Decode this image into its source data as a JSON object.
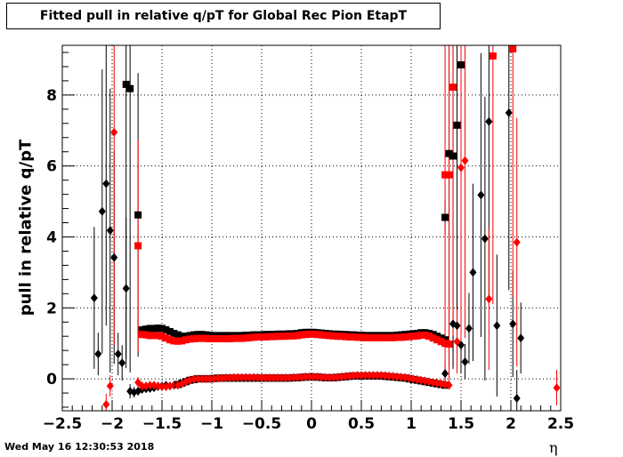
{
  "footer": {
    "date": "Wed May 16 12:30:53 2018"
  },
  "chart_data": {
    "type": "scatter",
    "title": "Fitted pull in relative q/pT for Global Rec Pion EtapT",
    "xlabel": "η",
    "ylabel": "pull in relative q/pT",
    "xlim": [
      -2.5,
      2.5
    ],
    "ylim": [
      -0.9,
      9.4
    ],
    "grid": true,
    "x_ticks": [
      -2.5,
      -2,
      -1.5,
      -1,
      -0.5,
      0,
      0.5,
      1,
      1.5,
      2,
      2.5
    ],
    "x_tick_labels": [
      "−2.5",
      "−2",
      "−1.5",
      "−1",
      "−0.5",
      "0",
      "0.5",
      "1",
      "1.5",
      "2",
      "2.5"
    ],
    "y_ticks": [
      0,
      2,
      4,
      6,
      8
    ],
    "y_tick_labels": [
      "0",
      "2",
      "4",
      "6",
      "8"
    ],
    "colors": {
      "black": "#000000",
      "red": "#ff0000"
    },
    "series": [
      {
        "marker": "diamond",
        "color": "#000000",
        "points": [
          [
            -2.18,
            2.28,
            2.0
          ],
          [
            -2.14,
            0.7,
            0.6
          ],
          [
            -2.1,
            4.72,
            4.0
          ],
          [
            -2.06,
            5.5,
            4.0
          ],
          [
            -2.02,
            4.18,
            4.0
          ],
          [
            -1.98,
            3.42,
            3.0
          ],
          [
            -1.94,
            0.7,
            0.6
          ],
          [
            -1.9,
            0.45,
            0.5
          ],
          [
            -1.86,
            2.55,
            2.0
          ],
          [
            -1.82,
            -0.35,
            0.2
          ],
          [
            -1.78,
            -0.38,
            0.15
          ],
          [
            -1.74,
            -0.35,
            0.12
          ],
          [
            -1.7,
            -0.3,
            0.1
          ],
          [
            -1.66,
            -0.28,
            0.08
          ],
          [
            -1.62,
            -0.27,
            0.06
          ],
          [
            -1.58,
            -0.25,
            0.05
          ],
          [
            -1.54,
            -0.22,
            0.05
          ],
          [
            -1.5,
            -0.2,
            0.05
          ],
          [
            -1.46,
            -0.18,
            0.05
          ],
          [
            -1.42,
            -0.2,
            0.05
          ],
          [
            -1.38,
            -0.18,
            0.05
          ],
          [
            1.34,
            0.15,
            0.35
          ],
          [
            1.42,
            1.55,
            1.2
          ],
          [
            1.46,
            1.5,
            1.2
          ],
          [
            1.5,
            0.95,
            0.8
          ],
          [
            1.54,
            0.48,
            0.5
          ],
          [
            1.58,
            1.42,
            1.0
          ],
          [
            1.62,
            3.0,
            2.5
          ],
          [
            1.7,
            5.18,
            4.0
          ],
          [
            1.74,
            3.95,
            4.0
          ],
          [
            1.78,
            7.25,
            5.0
          ],
          [
            1.86,
            1.5,
            2.0
          ],
          [
            1.98,
            7.5,
            5.0
          ],
          [
            2.02,
            1.55,
            1.5
          ],
          [
            2.06,
            -0.55,
            0.8
          ],
          [
            2.1,
            1.15,
            1.0
          ]
        ]
      },
      {
        "marker": "square",
        "color": "#000000",
        "points": [
          [
            -1.86,
            8.3,
            8.0
          ],
          [
            -1.82,
            8.18,
            8.0
          ],
          [
            -1.74,
            4.62,
            4.0
          ],
          [
            1.34,
            4.55,
            0.5
          ],
          [
            1.38,
            6.35,
            6.0
          ],
          [
            1.42,
            6.28,
            6.0
          ],
          [
            1.46,
            7.15,
            6.0
          ],
          [
            1.5,
            8.85,
            7.0
          ]
        ]
      },
      {
        "marker": "diamond",
        "color": "#ff0000",
        "points": [
          [
            -2.06,
            -0.72,
            0.3
          ],
          [
            -2.02,
            -0.2,
            0.3
          ],
          [
            -1.98,
            6.95,
            6.0
          ],
          [
            -1.74,
            -0.1,
            0.15
          ],
          [
            -1.7,
            -0.2,
            0.1
          ],
          [
            -1.66,
            -0.2,
            0.08
          ],
          [
            -1.62,
            -0.18,
            0.06
          ],
          [
            -1.58,
            -0.18,
            0.05
          ],
          [
            -1.54,
            -0.2,
            0.05
          ],
          [
            -1.5,
            -0.22,
            0.05
          ],
          [
            -1.46,
            -0.22,
            0.05
          ],
          [
            -1.42,
            -0.2,
            0.05
          ],
          [
            -1.38,
            -0.18,
            0.05
          ],
          [
            1.46,
            1.05,
            0.9
          ],
          [
            1.5,
            5.95,
            5.0
          ],
          [
            1.54,
            6.15,
            5.0
          ],
          [
            1.78,
            2.25,
            2.0
          ],
          [
            2.06,
            3.85,
            3.5
          ],
          [
            2.46,
            -0.25,
            0.5
          ]
        ]
      },
      {
        "marker": "square",
        "color": "#ff0000",
        "points": [
          [
            -1.74,
            3.75,
            3.0
          ],
          [
            1.34,
            5.75,
            6.0
          ],
          [
            1.38,
            5.75,
            6.0
          ],
          [
            1.42,
            8.22,
            7.0
          ],
          [
            1.82,
            9.1,
            7.0
          ],
          [
            2.02,
            9.3,
            7.0
          ]
        ]
      }
    ],
    "bands": [
      {
        "marker": "square",
        "color": "#000000",
        "x": [
          -1.7,
          -1.66,
          -1.62,
          -1.58,
          -1.54,
          -1.5,
          -1.46,
          -1.42,
          -1.38,
          -1.34,
          -1.3,
          -1.26,
          -1.22,
          -1.18,
          -1.14,
          -1.1,
          -1.06,
          -1.02,
          -0.98,
          -0.94,
          -0.9,
          -0.86,
          -0.82,
          -0.78,
          -0.74,
          -0.7,
          -0.66,
          -0.62,
          -0.58,
          -0.54,
          -0.5,
          -0.46,
          -0.42,
          -0.38,
          -0.34,
          -0.3,
          -0.26,
          -0.22,
          -0.18,
          -0.14,
          -0.1,
          -0.06,
          -0.02,
          0.02,
          0.06,
          0.1,
          0.14,
          0.18,
          0.22,
          0.26,
          0.3,
          0.34,
          0.38,
          0.42,
          0.46,
          0.5,
          0.54,
          0.58,
          0.62,
          0.66,
          0.7,
          0.74,
          0.78,
          0.82,
          0.86,
          0.9,
          0.94,
          0.98,
          1.02,
          1.06,
          1.1,
          1.14,
          1.18,
          1.22,
          1.26,
          1.3,
          1.34
        ],
        "y": [
          1.38,
          1.4,
          1.42,
          1.42,
          1.43,
          1.42,
          1.38,
          1.33,
          1.28,
          1.24,
          1.2,
          1.2,
          1.22,
          1.24,
          1.25,
          1.25,
          1.24,
          1.23,
          1.22,
          1.22,
          1.22,
          1.22,
          1.22,
          1.22,
          1.22,
          1.22,
          1.23,
          1.23,
          1.24,
          1.24,
          1.24,
          1.25,
          1.25,
          1.25,
          1.26,
          1.26,
          1.26,
          1.27,
          1.27,
          1.28,
          1.3,
          1.31,
          1.31,
          1.31,
          1.3,
          1.29,
          1.28,
          1.27,
          1.26,
          1.26,
          1.25,
          1.25,
          1.24,
          1.24,
          1.23,
          1.23,
          1.22,
          1.22,
          1.22,
          1.22,
          1.22,
          1.22,
          1.22,
          1.22,
          1.23,
          1.24,
          1.25,
          1.26,
          1.27,
          1.28,
          1.3,
          1.3,
          1.28,
          1.25,
          1.2,
          1.15,
          1.1
        ]
      },
      {
        "marker": "square",
        "color": "#ff0000",
        "x": [
          -1.7,
          -1.66,
          -1.62,
          -1.58,
          -1.54,
          -1.5,
          -1.46,
          -1.42,
          -1.38,
          -1.34,
          -1.3,
          -1.26,
          -1.22,
          -1.18,
          -1.14,
          -1.1,
          -1.06,
          -1.02,
          -0.98,
          -0.94,
          -0.9,
          -0.86,
          -0.82,
          -0.78,
          -0.74,
          -0.7,
          -0.66,
          -0.62,
          -0.58,
          -0.54,
          -0.5,
          -0.46,
          -0.42,
          -0.38,
          -0.34,
          -0.3,
          -0.26,
          -0.22,
          -0.18,
          -0.14,
          -0.1,
          -0.06,
          -0.02,
          0.02,
          0.06,
          0.1,
          0.14,
          0.18,
          0.22,
          0.26,
          0.3,
          0.34,
          0.38,
          0.42,
          0.46,
          0.5,
          0.54,
          0.58,
          0.62,
          0.66,
          0.7,
          0.74,
          0.78,
          0.82,
          0.86,
          0.9,
          0.94,
          0.98,
          1.02,
          1.06,
          1.1,
          1.14,
          1.18,
          1.22,
          1.26,
          1.3,
          1.34,
          1.38
        ],
        "y": [
          1.25,
          1.24,
          1.22,
          1.22,
          1.22,
          1.2,
          1.15,
          1.1,
          1.07,
          1.06,
          1.07,
          1.1,
          1.12,
          1.13,
          1.14,
          1.14,
          1.14,
          1.13,
          1.13,
          1.13,
          1.13,
          1.13,
          1.13,
          1.14,
          1.14,
          1.14,
          1.15,
          1.16,
          1.17,
          1.18,
          1.18,
          1.18,
          1.19,
          1.19,
          1.2,
          1.2,
          1.2,
          1.21,
          1.21,
          1.22,
          1.24,
          1.25,
          1.26,
          1.26,
          1.25,
          1.24,
          1.23,
          1.22,
          1.21,
          1.2,
          1.2,
          1.19,
          1.18,
          1.18,
          1.17,
          1.17,
          1.16,
          1.16,
          1.16,
          1.16,
          1.16,
          1.16,
          1.16,
          1.16,
          1.17,
          1.17,
          1.18,
          1.19,
          1.2,
          1.21,
          1.23,
          1.23,
          1.2,
          1.15,
          1.1,
          1.05,
          1.0,
          0.98
        ]
      },
      {
        "marker": "square",
        "color": "#000000",
        "x": [
          -1.34,
          -1.3,
          -1.26,
          -1.22,
          -1.18,
          -1.14,
          -1.1,
          -1.06,
          -1.02,
          -0.98,
          -0.94,
          -0.9,
          -0.86,
          -0.82,
          -0.78,
          -0.74,
          -0.7,
          -0.66,
          -0.62,
          -0.58,
          -0.54,
          -0.5,
          -0.46,
          -0.42,
          -0.38,
          -0.34,
          -0.3,
          -0.26,
          -0.22,
          -0.18,
          -0.14,
          -0.1,
          -0.06,
          -0.02,
          0.02,
          0.06,
          0.1,
          0.14,
          0.18,
          0.22,
          0.26,
          0.3,
          0.34,
          0.38,
          0.42,
          0.46,
          0.5,
          0.54,
          0.58,
          0.62,
          0.66,
          0.7,
          0.74,
          0.78,
          0.82,
          0.86,
          0.9,
          0.94,
          0.98,
          1.02,
          1.06,
          1.1,
          1.14,
          1.18,
          1.22,
          1.26,
          1.3,
          1.34
        ],
        "y": [
          -0.16,
          -0.12,
          -0.08,
          -0.04,
          -0.02,
          0.0,
          0.0,
          0.0,
          0.0,
          0.01,
          0.02,
          0.02,
          0.02,
          0.02,
          0.02,
          0.02,
          0.02,
          0.02,
          0.02,
          0.02,
          0.02,
          0.02,
          0.02,
          0.02,
          0.02,
          0.02,
          0.02,
          0.02,
          0.02,
          0.03,
          0.03,
          0.04,
          0.05,
          0.05,
          0.05,
          0.05,
          0.04,
          0.03,
          0.03,
          0.03,
          0.04,
          0.05,
          0.06,
          0.07,
          0.08,
          0.08,
          0.08,
          0.08,
          0.08,
          0.08,
          0.08,
          0.08,
          0.07,
          0.06,
          0.05,
          0.04,
          0.03,
          0.02,
          0.0,
          -0.02,
          -0.04,
          -0.06,
          -0.08,
          -0.1,
          -0.12,
          -0.14,
          -0.16,
          -0.18
        ]
      },
      {
        "marker": "diamond",
        "color": "#ff0000",
        "x": [
          -1.34,
          -1.3,
          -1.26,
          -1.22,
          -1.18,
          -1.14,
          -1.1,
          -1.06,
          -1.02,
          -0.98,
          -0.94,
          -0.9,
          -0.86,
          -0.82,
          -0.78,
          -0.74,
          -0.7,
          -0.66,
          -0.62,
          -0.58,
          -0.54,
          -0.5,
          -0.46,
          -0.42,
          -0.38,
          -0.34,
          -0.3,
          -0.26,
          -0.22,
          -0.18,
          -0.14,
          -0.1,
          -0.06,
          -0.02,
          0.02,
          0.06,
          0.1,
          0.14,
          0.18,
          0.22,
          0.26,
          0.3,
          0.34,
          0.38,
          0.42,
          0.46,
          0.5,
          0.54,
          0.58,
          0.62,
          0.66,
          0.7,
          0.74,
          0.78,
          0.82,
          0.86,
          0.9,
          0.94,
          0.98,
          1.02,
          1.06,
          1.1,
          1.14,
          1.18,
          1.22,
          1.26,
          1.3,
          1.34,
          1.38
        ],
        "y": [
          -0.18,
          -0.14,
          -0.08,
          -0.04,
          -0.01,
          0.0,
          0.0,
          0.0,
          0.0,
          0.01,
          0.02,
          0.02,
          0.03,
          0.03,
          0.04,
          0.04,
          0.04,
          0.04,
          0.04,
          0.04,
          0.04,
          0.03,
          0.03,
          0.03,
          0.03,
          0.03,
          0.03,
          0.03,
          0.03,
          0.04,
          0.04,
          0.05,
          0.06,
          0.06,
          0.06,
          0.06,
          0.05,
          0.04,
          0.04,
          0.04,
          0.05,
          0.06,
          0.07,
          0.08,
          0.09,
          0.1,
          0.1,
          0.1,
          0.1,
          0.1,
          0.1,
          0.1,
          0.09,
          0.08,
          0.07,
          0.06,
          0.05,
          0.04,
          0.02,
          0.0,
          -0.02,
          -0.04,
          -0.06,
          -0.08,
          -0.1,
          -0.12,
          -0.14,
          -0.16,
          -0.18
        ]
      }
    ]
  }
}
